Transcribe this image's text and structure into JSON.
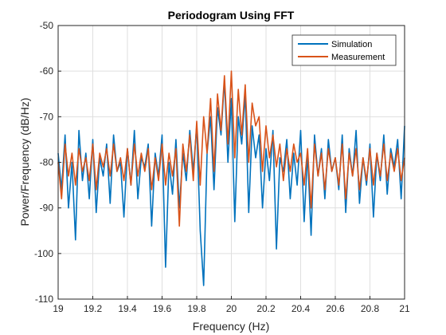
{
  "chart_data": {
    "type": "line",
    "title": "Periodogram Using FFT",
    "xlabel": "Frequency (Hz)",
    "ylabel": "Power/Frequency (dB/Hz)",
    "xlim": [
      19,
      21
    ],
    "ylim": [
      -110,
      -50
    ],
    "xticks": [
      19,
      19.2,
      19.4,
      19.6,
      19.8,
      20,
      20.2,
      20.4,
      20.6,
      20.8,
      21
    ],
    "xtick_labels": [
      "19",
      "19.2",
      "19.4",
      "19.6",
      "19.8",
      "20",
      "20.2",
      "20.4",
      "20.6",
      "20.8",
      "21"
    ],
    "yticks": [
      -110,
      -100,
      -90,
      -80,
      -70,
      -60,
      -50
    ],
    "ytick_labels": [
      "-110",
      "-100",
      "-90",
      "-80",
      "-70",
      "-60",
      "-50"
    ],
    "grid": true,
    "legend_position": "top-right",
    "series": [
      {
        "name": "Simulation",
        "color": "#0072BD",
        "x": [
          19.0,
          19.02,
          19.04,
          19.06,
          19.08,
          19.1,
          19.12,
          19.14,
          19.16,
          19.18,
          19.2,
          19.22,
          19.24,
          19.26,
          19.28,
          19.3,
          19.32,
          19.34,
          19.36,
          19.38,
          19.4,
          19.42,
          19.44,
          19.46,
          19.48,
          19.5,
          19.52,
          19.54,
          19.56,
          19.58,
          19.6,
          19.62,
          19.64,
          19.66,
          19.68,
          19.7,
          19.72,
          19.74,
          19.76,
          19.78,
          19.8,
          19.82,
          19.84,
          19.86,
          19.88,
          19.9,
          19.92,
          19.94,
          19.96,
          19.98,
          20.0,
          20.02,
          20.04,
          20.06,
          20.08,
          20.1,
          20.12,
          20.14,
          20.16,
          20.18,
          20.2,
          20.22,
          20.24,
          20.26,
          20.28,
          20.3,
          20.32,
          20.34,
          20.36,
          20.38,
          20.4,
          20.42,
          20.44,
          20.46,
          20.48,
          20.5,
          20.52,
          20.54,
          20.56,
          20.58,
          20.6,
          20.62,
          20.64,
          20.66,
          20.68,
          20.7,
          20.72,
          20.74,
          20.76,
          20.78,
          20.8,
          20.82,
          20.84,
          20.86,
          20.88,
          20.9,
          20.92,
          20.94,
          20.96,
          20.98,
          21.0
        ],
        "y": [
          -78,
          -86,
          -74,
          -90,
          -80,
          -97,
          -73,
          -84,
          -78,
          -88,
          -75,
          -91,
          -79,
          -83,
          -76,
          -89,
          -74,
          -82,
          -80,
          -92,
          -77,
          -85,
          -73,
          -88,
          -79,
          -81,
          -76,
          -94,
          -78,
          -83,
          -74,
          -103,
          -80,
          -87,
          -75,
          -90,
          -78,
          -84,
          -73,
          -82,
          -72,
          -95,
          -107,
          -78,
          -70,
          -86,
          -68,
          -74,
          -62,
          -80,
          -66,
          -93,
          -70,
          -76,
          -65,
          -91,
          -72,
          -79,
          -74,
          -90,
          -77,
          -84,
          -73,
          -99,
          -79,
          -82,
          -75,
          -88,
          -78,
          -85,
          -73,
          -93,
          -78,
          -96,
          -74,
          -83,
          -77,
          -88,
          -75,
          -82,
          -79,
          -86,
          -74,
          -91,
          -77,
          -83,
          -73,
          -89,
          -79,
          -85,
          -76,
          -92,
          -78,
          -84,
          -74,
          -87,
          -77,
          -81,
          -75,
          -88,
          -72
        ]
      },
      {
        "name": "Measurement",
        "color": "#D95319",
        "x": [
          19.0,
          19.02,
          19.04,
          19.06,
          19.08,
          19.1,
          19.12,
          19.14,
          19.16,
          19.18,
          19.2,
          19.22,
          19.24,
          19.26,
          19.28,
          19.3,
          19.32,
          19.34,
          19.36,
          19.38,
          19.4,
          19.42,
          19.44,
          19.46,
          19.48,
          19.5,
          19.52,
          19.54,
          19.56,
          19.58,
          19.6,
          19.62,
          19.64,
          19.66,
          19.68,
          19.7,
          19.72,
          19.74,
          19.76,
          19.78,
          19.8,
          19.82,
          19.84,
          19.86,
          19.88,
          19.9,
          19.92,
          19.94,
          19.96,
          19.98,
          20.0,
          20.02,
          20.04,
          20.06,
          20.08,
          20.1,
          20.12,
          20.14,
          20.16,
          20.18,
          20.2,
          20.22,
          20.24,
          20.26,
          20.28,
          20.3,
          20.32,
          20.34,
          20.36,
          20.38,
          20.4,
          20.42,
          20.44,
          20.46,
          20.48,
          20.5,
          20.52,
          20.54,
          20.56,
          20.58,
          20.6,
          20.62,
          20.64,
          20.66,
          20.68,
          20.7,
          20.72,
          20.74,
          20.76,
          20.78,
          20.8,
          20.82,
          20.84,
          20.86,
          20.88,
          20.9,
          20.92,
          20.94,
          20.96,
          20.98,
          21.0
        ],
        "y": [
          -80,
          -88,
          -76,
          -83,
          -78,
          -85,
          -77,
          -82,
          -79,
          -84,
          -76,
          -86,
          -78,
          -81,
          -77,
          -83,
          -76,
          -82,
          -79,
          -84,
          -77,
          -85,
          -76,
          -83,
          -78,
          -82,
          -77,
          -86,
          -79,
          -84,
          -76,
          -85,
          -78,
          -83,
          -77,
          -94,
          -76,
          -82,
          -74,
          -84,
          -71,
          -85,
          -70,
          -78,
          -66,
          -82,
          -65,
          -73,
          -61,
          -76,
          -60,
          -79,
          -64,
          -74,
          -63,
          -80,
          -67,
          -72,
          -70,
          -82,
          -72,
          -79,
          -74,
          -81,
          -76,
          -84,
          -77,
          -82,
          -76,
          -80,
          -78,
          -85,
          -77,
          -90,
          -76,
          -83,
          -78,
          -86,
          -77,
          -82,
          -79,
          -85,
          -76,
          -88,
          -78,
          -83,
          -77,
          -86,
          -79,
          -84,
          -77,
          -85,
          -78,
          -83,
          -76,
          -84,
          -78,
          -82,
          -77,
          -84,
          -79
        ]
      }
    ]
  }
}
